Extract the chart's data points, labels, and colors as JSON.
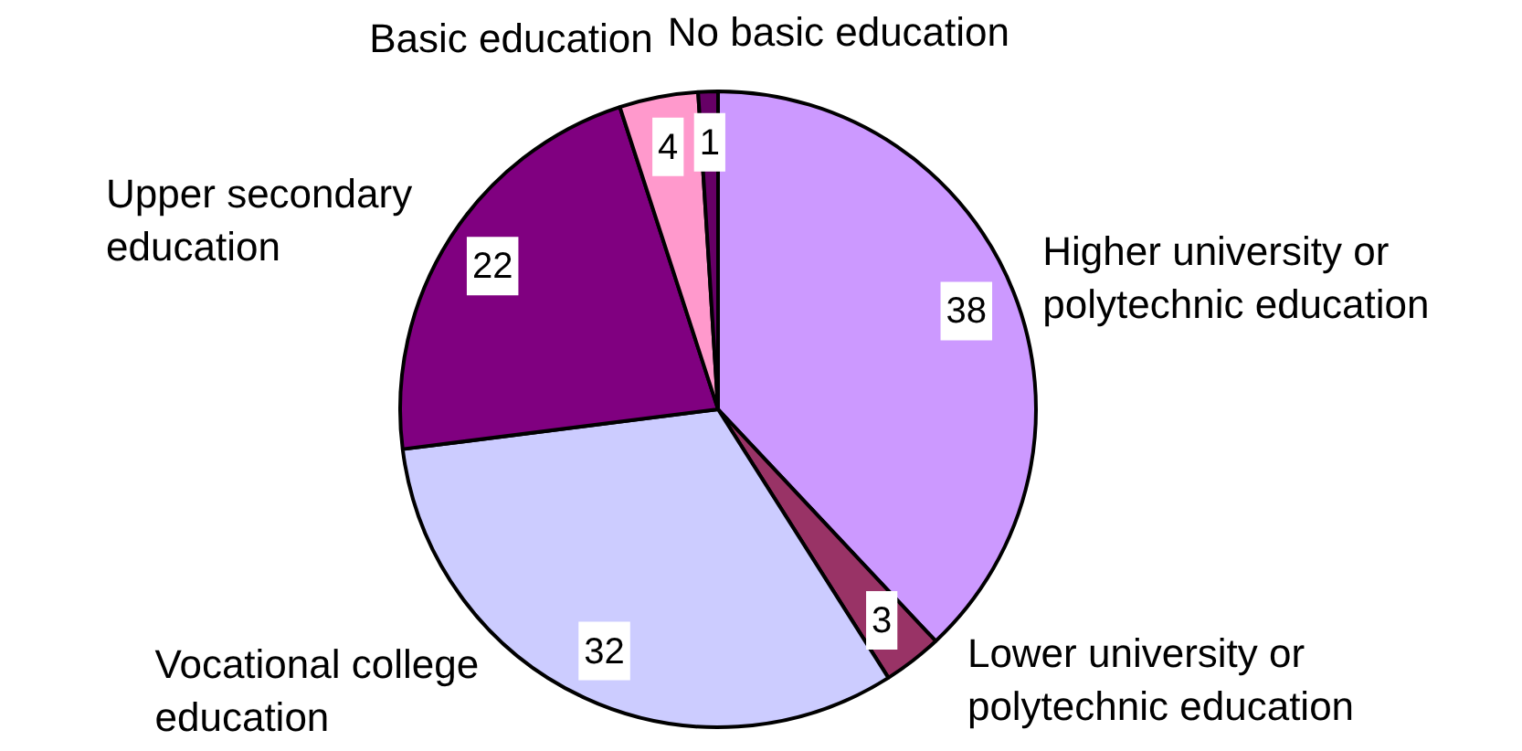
{
  "chart_data": {
    "type": "pie",
    "categories": [
      "Higher university or polytechnic education",
      "Lower university or polytechnic education",
      "Vocational college education",
      "Upper secondary education",
      "Basic education",
      "No basic education"
    ],
    "values": [
      38,
      3,
      32,
      22,
      4,
      1
    ],
    "colors": [
      "#cc99ff",
      "#993366",
      "#ccccff",
      "#800080",
      "#ff99cc",
      "#660066"
    ],
    "data_labels": true
  }
}
